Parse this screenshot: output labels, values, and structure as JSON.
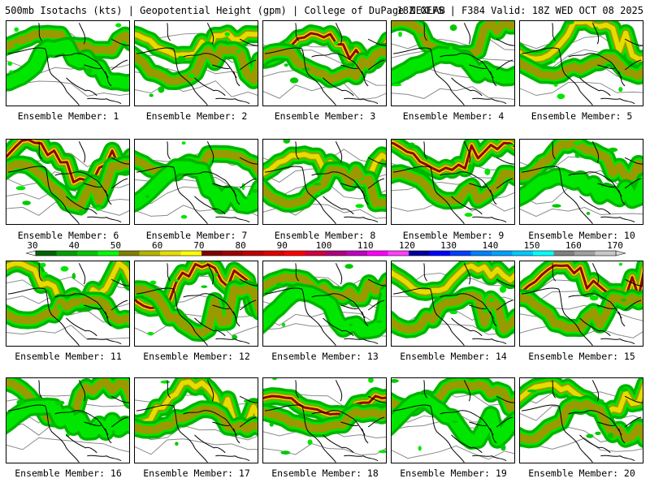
{
  "header": {
    "title": "500mb Isotachs (kts) | Geopotential Height (gpm) | College of DuPage NEXLAB",
    "run_info": "18Z GEFS | F384 Valid: 18Z WED OCT 08 2025"
  },
  "members": [
    {
      "label": "Ensemble Member: 1"
    },
    {
      "label": "Ensemble Member: 2"
    },
    {
      "label": "Ensemble Member: 3"
    },
    {
      "label": "Ensemble Member: 4"
    },
    {
      "label": "Ensemble Member: 5"
    },
    {
      "label": "Ensemble Member: 6"
    },
    {
      "label": "Ensemble Member: 7"
    },
    {
      "label": "Ensemble Member: 8"
    },
    {
      "label": "Ensemble Member: 9"
    },
    {
      "label": "Ensemble Member: 10"
    },
    {
      "label": "Ensemble Member: 11"
    },
    {
      "label": "Ensemble Member: 12"
    },
    {
      "label": "Ensemble Member: 13"
    },
    {
      "label": "Ensemble Member: 14"
    },
    {
      "label": "Ensemble Member: 15"
    },
    {
      "label": "Ensemble Member: 16"
    },
    {
      "label": "Ensemble Member: 17"
    },
    {
      "label": "Ensemble Member: 18"
    },
    {
      "label": "Ensemble Member: 19"
    },
    {
      "label": "Ensemble Member: 20"
    }
  ],
  "colorbar": {
    "labels": [
      "30",
      "40",
      "50",
      "60",
      "70",
      "80",
      "90",
      "100",
      "110",
      "120",
      "130",
      "140",
      "150",
      "160",
      "170"
    ],
    "colors": [
      "#006400",
      "#00a000",
      "#00c800",
      "#00ff00",
      "#808000",
      "#b4b400",
      "#e6dc00",
      "#ffff00",
      "#800000",
      "#a00000",
      "#c00000",
      "#e00000",
      "#ff0000",
      "#d00040",
      "#b00080",
      "#c000c0",
      "#ff00ff",
      "#ff40ff",
      "#0000a0",
      "#0000ff",
      "#0040ff",
      "#0080ff",
      "#00a0ff",
      "#00c8ff",
      "#00ffff",
      "#808080",
      "#a0a0a0",
      "#c8c8c8"
    ]
  }
}
